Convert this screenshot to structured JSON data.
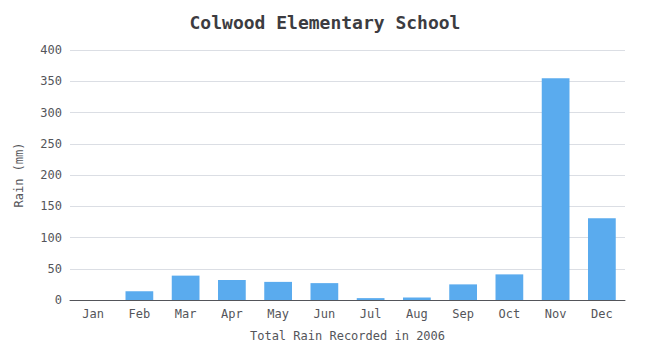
{
  "chart_data": {
    "type": "bar",
    "title": "Colwood Elementary School",
    "xlabel": "Total Rain Recorded in 2006",
    "ylabel": "Rain (mm)",
    "categories": [
      "Jan",
      "Feb",
      "Mar",
      "Apr",
      "May",
      "Jun",
      "Jul",
      "Aug",
      "Sep",
      "Oct",
      "Nov",
      "Dec"
    ],
    "values": [
      0,
      14,
      39,
      32,
      29,
      27,
      3,
      4,
      25,
      41,
      355,
      131
    ],
    "color": "#5aabee",
    "ylim": [
      0,
      400
    ],
    "yticks": [
      0,
      50,
      100,
      150,
      200,
      250,
      300,
      350,
      400
    ],
    "grid": true
  }
}
